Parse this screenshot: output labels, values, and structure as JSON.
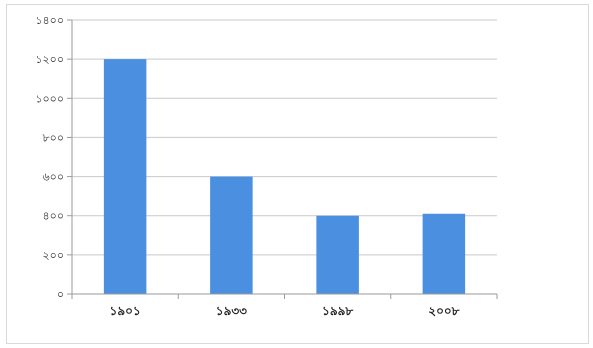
{
  "chart_data": {
    "type": "bar",
    "categories": [
      "১৯০১",
      "১৯৩৩",
      "১৯৯৮",
      "২০০৮"
    ],
    "values": [
      1200,
      600,
      400,
      410
    ],
    "y_tick_labels": [
      "০",
      "২০০",
      "৪০০",
      "৬০০",
      "৮০০",
      "১০০০",
      "১২০০",
      "১৪০০"
    ],
    "y_ticks": [
      0,
      200,
      400,
      600,
      800,
      1000,
      1200,
      1400
    ],
    "ylim": [
      0,
      1400
    ],
    "grid": true,
    "legend": "none",
    "bar_color": "#4a8fe0",
    "grid_color": "#c9c9c9",
    "title": "",
    "xlabel": "",
    "ylabel": ""
  }
}
